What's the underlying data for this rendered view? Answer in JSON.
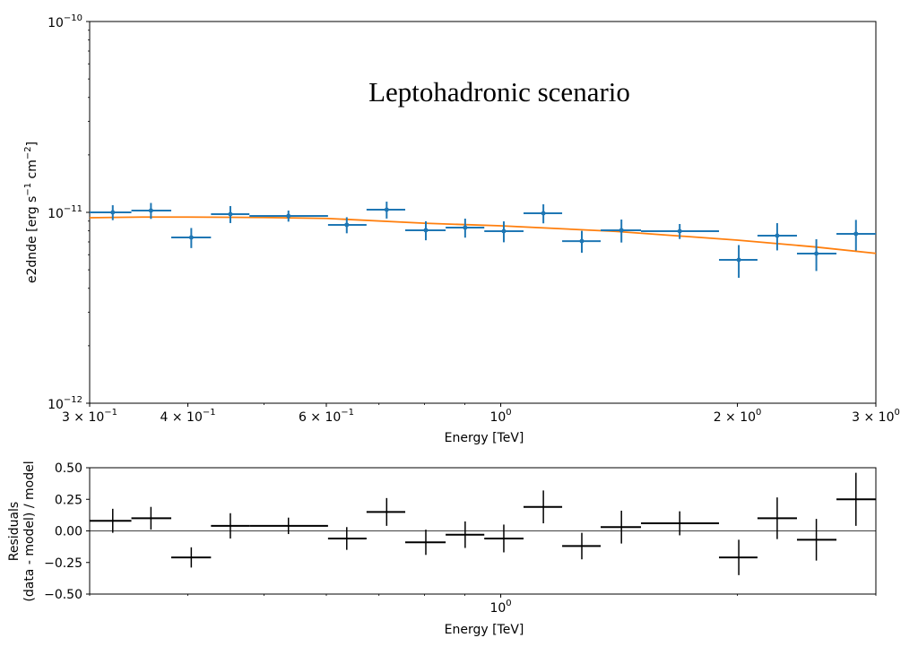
{
  "chart_data": [
    {
      "type": "scatter",
      "title": "Leptohadronic scenario",
      "xlabel": "Energy [TeV]",
      "ylabel": "e2dnde [erg s^-1 cm^-2]",
      "ylabel_parts": {
        "main": "e2dnde [erg s",
        "s_exp": "−1",
        "mid": " cm",
        "cm_exp": "−2",
        "end": "]"
      },
      "xscale": "log",
      "yscale": "log",
      "xlim": [
        0.3,
        3.0
      ],
      "ylim": [
        1e-12,
        1e-10
      ],
      "grid": false,
      "x_ticks": [
        {
          "value": 0.3,
          "mantissa": "3 × 10",
          "exp": "−1"
        },
        {
          "value": 0.4,
          "mantissa": "4 × 10",
          "exp": "−1"
        },
        {
          "value": 0.6,
          "mantissa": "6 × 10",
          "exp": "−1"
        },
        {
          "value": 1.0,
          "mantissa": "10",
          "exp": "0"
        },
        {
          "value": 2.0,
          "mantissa": "2 × 10",
          "exp": "0"
        },
        {
          "value": 3.0,
          "mantissa": "3 × 10",
          "exp": "0"
        }
      ],
      "y_ticks": [
        {
          "value": 1e-10,
          "mantissa": "10",
          "exp": "−10"
        },
        {
          "value": 1e-11,
          "mantissa": "10",
          "exp": "−11"
        },
        {
          "value": 1e-12,
          "mantissa": "10",
          "exp": "−12"
        }
      ],
      "colors": {
        "data": "#1f77b4",
        "model": "#ff7f0e"
      },
      "series": [
        {
          "kind": "flux_points",
          "e_ref": [
            0.321,
            0.359,
            0.404,
            0.453,
            0.537,
            0.637,
            0.716,
            0.803,
            0.901,
            1.009,
            1.133,
            1.268,
            1.424,
            1.689,
            2.008,
            2.247,
            2.52,
            2.83
          ],
          "e_min": [
            0.3,
            0.339,
            0.381,
            0.428,
            0.479,
            0.603,
            0.675,
            0.756,
            0.851,
            0.953,
            1.069,
            1.197,
            1.34,
            1.508,
            1.895,
            2.121,
            2.381,
            2.673
          ],
          "e_max": [
            0.339,
            0.381,
            0.428,
            0.479,
            0.603,
            0.675,
            0.756,
            0.851,
            0.953,
            1.069,
            1.197,
            1.34,
            1.508,
            1.895,
            2.121,
            2.381,
            2.673,
            3.0
          ],
          "e2dnde": [
            1e-11,
            1.022e-11,
            7.39e-12,
            9.79e-12,
            9.58e-12,
            8.6e-12,
            1.033e-11,
            8.06e-12,
            8.32e-12,
            7.97e-12,
            9.89e-12,
            7.07e-12,
            8.06e-12,
            7.97e-12,
            5.64e-12,
            7.55e-12,
            6.08e-12,
            7.72e-12
          ],
          "e2dnde_err": [
            9e-13,
            9.8e-13,
            8.9e-13,
            1e-12,
            6.4e-13,
            8.3e-13,
            1.05e-12,
            9.2e-13,
            9.5e-13,
            1e-12,
            1.13e-12,
            9.3e-13,
            1.11e-12,
            7.2e-13,
            1.1e-12,
            1.23e-12,
            1.15e-12,
            1.41e-12
          ]
        },
        {
          "kind": "model",
          "x": [
            0.3,
            0.35,
            0.4,
            0.5,
            0.6,
            0.8,
            1.0,
            1.4,
            2.0,
            2.5,
            3.0
          ],
          "y": [
            9.37e-12,
            9.45e-12,
            9.45e-12,
            9.4e-12,
            9.3e-12,
            8.77e-12,
            8.5e-12,
            7.95e-12,
            7.15e-12,
            6.6e-12,
            6.1e-12
          ]
        }
      ]
    },
    {
      "type": "scatter",
      "xlabel": "Energy [TeV]",
      "ylabel_lines": [
        "Residuals",
        "(data - model) / model"
      ],
      "xscale": "log",
      "xlim": [
        0.3,
        3.0
      ],
      "ylim": [
        -0.5,
        0.5
      ],
      "grid": false,
      "zero_line": true,
      "x_ticks": [
        {
          "value": 1.0,
          "mantissa": "10",
          "exp": "0"
        }
      ],
      "y_ticks": [
        {
          "value": 0.5,
          "label": "0.50"
        },
        {
          "value": 0.25,
          "label": "0.25"
        },
        {
          "value": 0.0,
          "label": "0.00"
        },
        {
          "value": -0.25,
          "label": "−0.25"
        },
        {
          "value": -0.5,
          "label": "−0.50"
        }
      ],
      "colors": {
        "data": "#000000"
      },
      "residuals": [
        0.08,
        0.1,
        -0.21,
        0.04,
        0.04,
        -0.06,
        0.15,
        -0.09,
        -0.03,
        -0.06,
        0.19,
        -0.12,
        0.03,
        0.06,
        -0.21,
        0.1,
        -0.07,
        0.25
      ],
      "residuals_err": [
        0.095,
        0.09,
        0.08,
        0.1,
        0.065,
        0.09,
        0.11,
        0.1,
        0.105,
        0.11,
        0.13,
        0.105,
        0.13,
        0.095,
        0.14,
        0.165,
        0.165,
        0.21
      ]
    }
  ]
}
